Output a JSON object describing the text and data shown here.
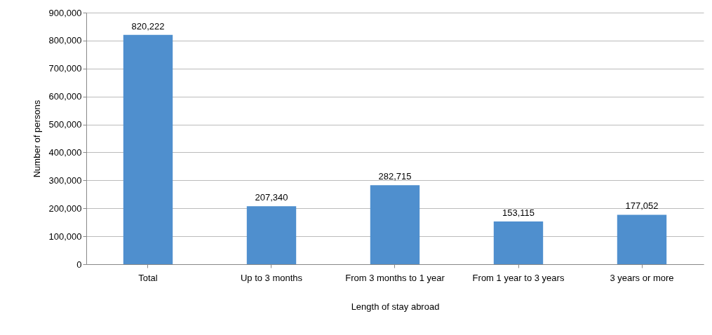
{
  "chart_data": {
    "type": "bar",
    "xlabel": "Length of stay abroad",
    "ylabel": "Number of persons",
    "categories": [
      "Total",
      "Up to 3 months",
      "From 3 months to 1 year",
      "From 1 year to 3 years",
      "3 years or more"
    ],
    "values": [
      820222,
      207340,
      282715,
      153115,
      177052
    ],
    "value_labels": [
      "820,222",
      "207,340",
      "282,715",
      "153,115",
      "177,052"
    ],
    "color": "#4f8fce",
    "ylim": [
      0,
      900000
    ],
    "yticks": [
      0,
      {
        "value": 100000,
        "label": "100,000"
      },
      {
        "value": 200000,
        "label": "200,000"
      },
      {
        "value": 300000,
        "label": "300,000"
      },
      {
        "value": 400000,
        "label": "400,000"
      },
      {
        "value": 500000,
        "label": "500,000"
      },
      {
        "value": 600000,
        "label": "600,000"
      },
      {
        "value": 700000,
        "label": "700,000"
      },
      {
        "value": 800000,
        "label": "800,000"
      },
      {
        "value": 900000,
        "label": "900,000"
      }
    ],
    "grid": "y"
  }
}
